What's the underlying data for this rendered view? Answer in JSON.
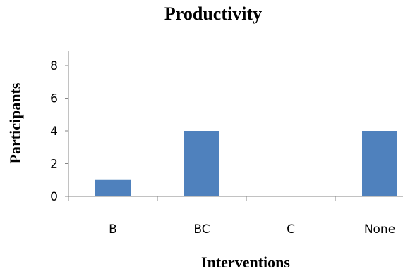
{
  "chart_data": {
    "type": "bar",
    "title": "Productivity",
    "xlabel": "Interventions",
    "ylabel": "Participants",
    "categories": [
      "B",
      "BC",
      "C",
      "None"
    ],
    "values": [
      1,
      4,
      0,
      4
    ],
    "ylim": [
      0,
      8
    ],
    "yticks": [
      0,
      2,
      4,
      6,
      8
    ],
    "grid": false,
    "legend": "none",
    "bar_color": "#4f81bd"
  }
}
